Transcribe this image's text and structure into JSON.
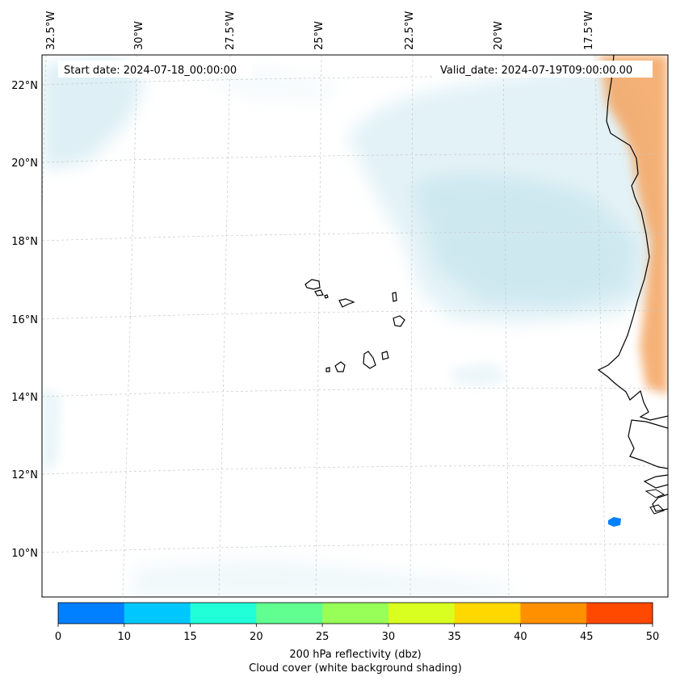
{
  "map": {
    "start_date": "Start date: 2024-07-18_00:00:00",
    "valid_date": "Valid_date: 2024-07-19T09:00:00.00",
    "lon_labels": [
      "32.5°W",
      "30°W",
      "27.5°W",
      "25°W",
      "22.5°W",
      "20°W",
      "17.5°W"
    ],
    "lat_labels": [
      "22°N",
      "20°N",
      "18°N",
      "16°N",
      "14°N",
      "12°N",
      "10°N"
    ],
    "colors": {
      "cloud": "#a9d8e6",
      "warm": "#f4a460",
      "coast": "#000000",
      "reflectivity_cell": "#0080ff"
    }
  },
  "colorbar": {
    "bins": [
      {
        "from": 0,
        "to": 10,
        "color": "#0080ff"
      },
      {
        "from": 10,
        "to": 15,
        "color": "#00c8ff"
      },
      {
        "from": 15,
        "to": 20,
        "color": "#20ffd8"
      },
      {
        "from": 20,
        "to": 25,
        "color": "#60ff90"
      },
      {
        "from": 25,
        "to": 30,
        "color": "#98ff58"
      },
      {
        "from": 30,
        "to": 35,
        "color": "#d8ff20"
      },
      {
        "from": 35,
        "to": 40,
        "color": "#ffd800"
      },
      {
        "from": 40,
        "to": 45,
        "color": "#ff9000"
      },
      {
        "from": 45,
        "to": 50,
        "color": "#ff4800"
      }
    ],
    "ticks": [
      "0",
      "10",
      "15",
      "20",
      "25",
      "30",
      "35",
      "40",
      "45",
      "50"
    ],
    "label_line1": "200 hPa reflectivity (dbz)",
    "label_line2": "Cloud cover (white background shading)"
  }
}
